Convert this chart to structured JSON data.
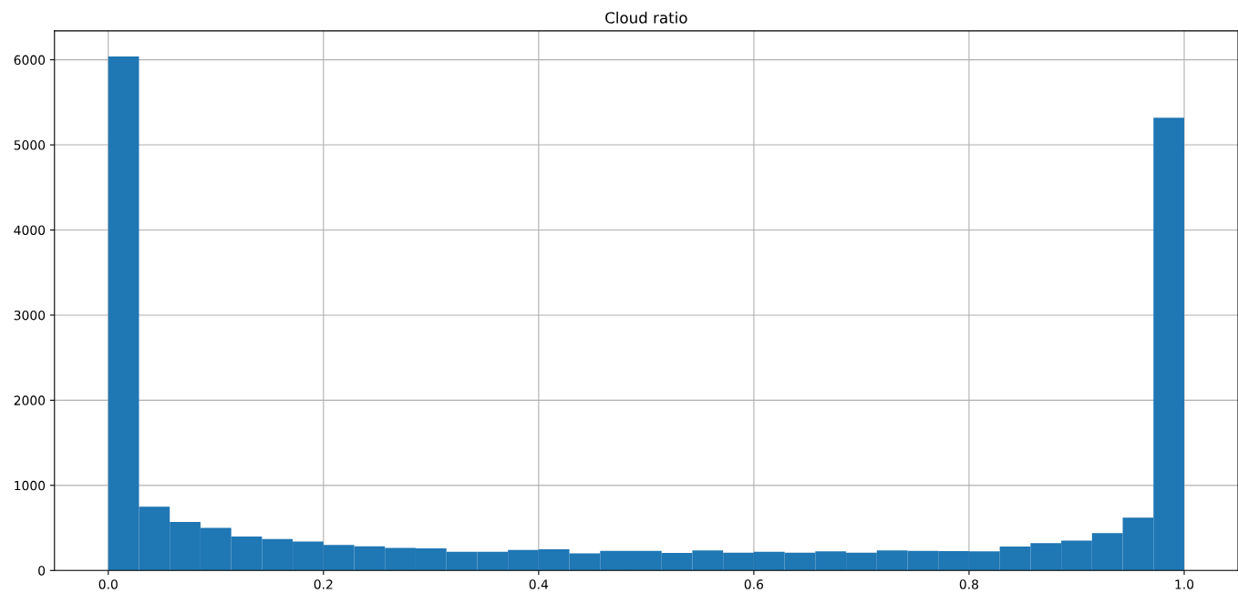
{
  "chart_data": {
    "type": "histogram",
    "title": "Cloud ratio",
    "color": "#1f77b4",
    "bins": [
      0.0,
      0.028571,
      0.057143,
      0.085714,
      0.114286,
      0.142857,
      0.171429,
      0.2,
      0.228571,
      0.257143,
      0.285714,
      0.314286,
      0.342857,
      0.371429,
      0.4,
      0.428571,
      0.457143,
      0.485714,
      0.514286,
      0.542857,
      0.571429,
      0.6,
      0.628571,
      0.657143,
      0.685714,
      0.714286,
      0.742857,
      0.771429,
      0.8,
      0.828571,
      0.857143,
      0.885714,
      0.914286,
      0.942857,
      0.971429,
      1.0
    ],
    "values": [
      6040,
      750,
      570,
      500,
      400,
      370,
      340,
      300,
      285,
      265,
      260,
      220,
      220,
      240,
      250,
      200,
      230,
      230,
      205,
      235,
      210,
      220,
      210,
      225,
      210,
      235,
      230,
      228,
      225,
      280,
      320,
      350,
      440,
      620,
      5320
    ],
    "xlim": [
      -0.05,
      1.05
    ],
    "xticks": [
      {
        "value": 0.0,
        "label": "0.0"
      },
      0.2,
      0.4,
      0.6,
      0.8,
      {
        "value": 1.0,
        "label": "1.0"
      }
    ],
    "ylim": [
      0,
      6340
    ],
    "yticks": [
      0,
      1000,
      2000,
      3000,
      4000,
      5000,
      6000
    ],
    "grid": true
  }
}
